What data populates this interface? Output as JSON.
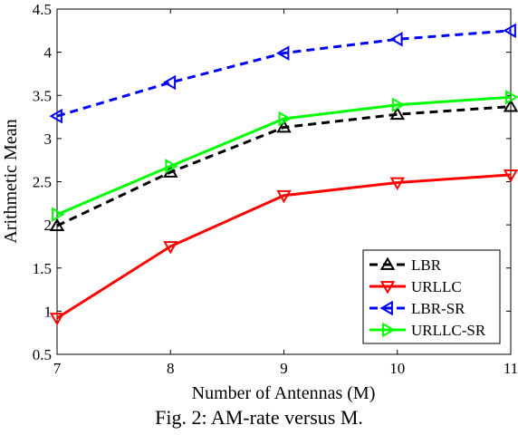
{
  "caption": "Fig. 2: AM-rate versus M.",
  "chart_data": {
    "type": "line",
    "x": [
      7,
      8,
      9,
      10,
      11
    ],
    "xlabel": "Number of Antennas (M)",
    "ylabel": "Arithmetic Mean",
    "xlim": [
      7,
      11
    ],
    "ylim": [
      0.5,
      4.5
    ],
    "xticks": [
      "7",
      "8",
      "9",
      "10",
      "11"
    ],
    "yticks": [
      "0.5",
      "1",
      "1.5",
      "2",
      "2.5",
      "3",
      "3.5",
      "4",
      "4.5"
    ],
    "grid": false,
    "legend_position": "bottom-right",
    "series": [
      {
        "name": "LBR",
        "values": [
          1.99,
          2.61,
          3.13,
          3.28,
          3.37
        ],
        "color": "#000000",
        "dash": "dashed",
        "marker": "triangle-up"
      },
      {
        "name": "URLLC",
        "values": [
          0.92,
          1.75,
          2.34,
          2.49,
          2.58
        ],
        "color": "#ff0000",
        "dash": "solid",
        "marker": "triangle-down"
      },
      {
        "name": "LBR-SR",
        "values": [
          3.26,
          3.65,
          3.99,
          4.15,
          4.25
        ],
        "color": "#0000ff",
        "dash": "dashed",
        "marker": "triangle-left"
      },
      {
        "name": "URLLC-SR",
        "values": [
          2.12,
          2.68,
          3.23,
          3.39,
          3.48
        ],
        "color": "#00ff00",
        "dash": "solid",
        "marker": "triangle-right"
      }
    ]
  }
}
